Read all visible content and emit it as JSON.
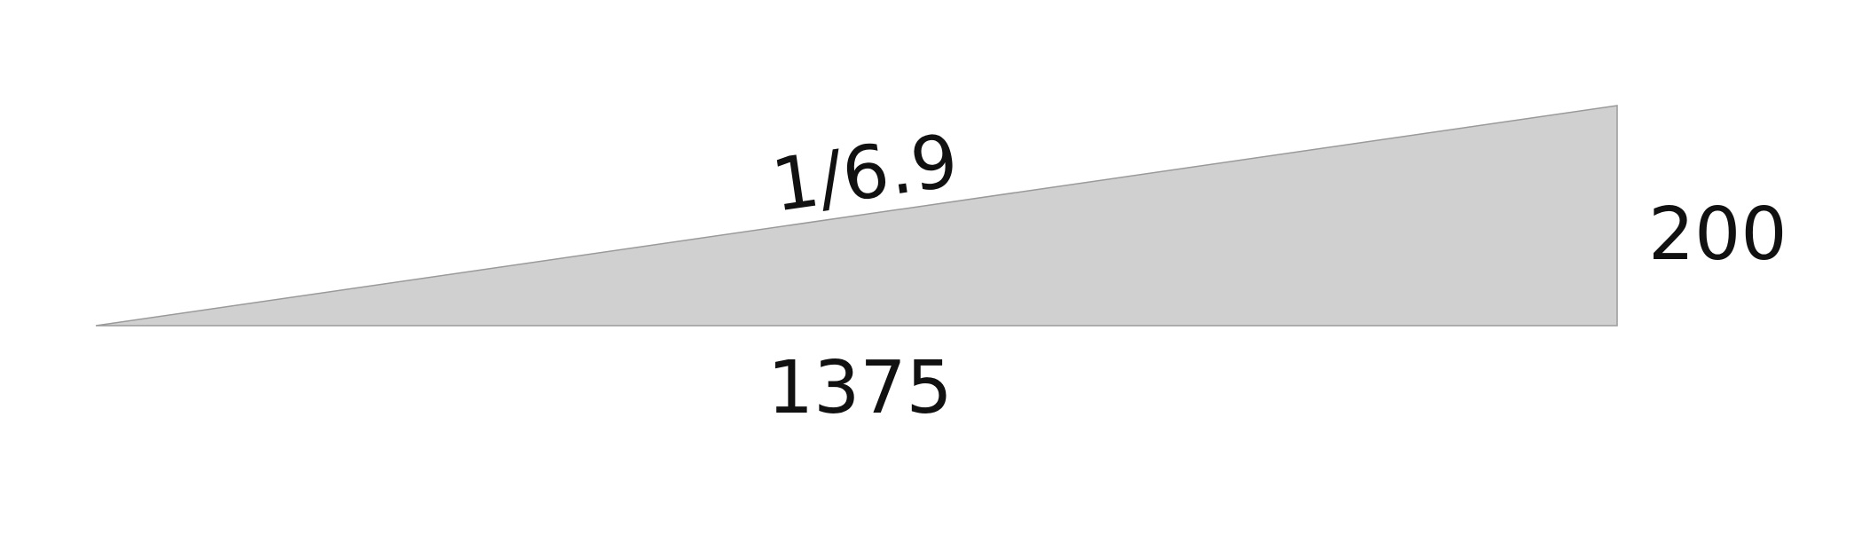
{
  "diagram": {
    "type": "right-triangle-slope",
    "fill_color": "#d0d0d0",
    "stroke_color": "#9a9a9a",
    "text_color": "#111111",
    "labels": {
      "slope": "1/6.9",
      "base": "1375",
      "height": "200"
    }
  }
}
